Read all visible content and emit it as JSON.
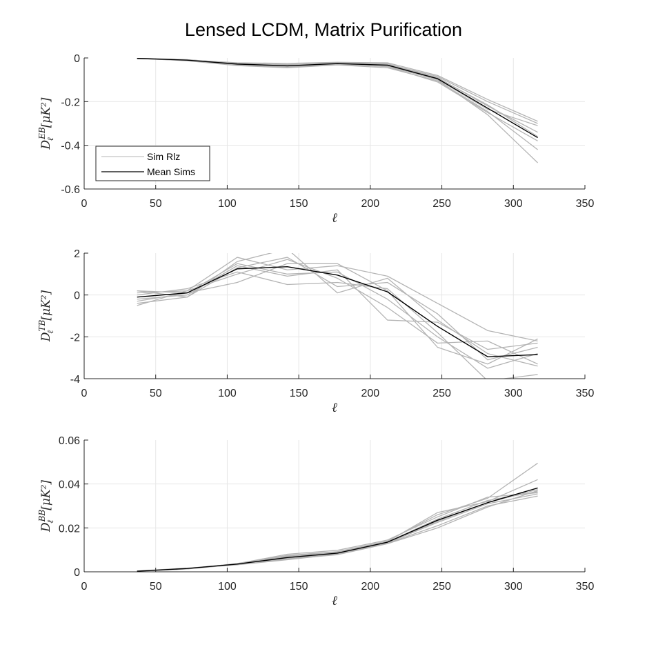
{
  "figure": {
    "title": "Lensed LCDM, Matrix Purification"
  },
  "colors": {
    "rlz": "#b4b4b4",
    "mean": "#000000",
    "grid": "#e6e6e6",
    "axis": "#262626"
  },
  "legend": {
    "entries": [
      "Sim Rlz",
      "Mean Sims"
    ],
    "placement": "inside-lower-left",
    "panel": 0
  },
  "chart_data": [
    {
      "type": "line",
      "title": "",
      "xlabel": "ℓ",
      "ylabel": {
        "base": "D",
        "sub": "ℓ",
        "sup": "EB",
        "unit": "[μK²]"
      },
      "xlim": [
        0,
        350
      ],
      "ylim": [
        -0.6,
        0
      ],
      "xticks": [
        0,
        50,
        100,
        150,
        200,
        250,
        300,
        350
      ],
      "yticks": [
        -0.6,
        -0.4,
        -0.2,
        0
      ],
      "ytick_labels": [
        "-0.6",
        "-0.4",
        "-0.2",
        "0"
      ],
      "grid": true,
      "x": [
        37,
        72,
        107,
        142,
        177,
        212,
        247,
        282,
        317
      ],
      "series": [
        {
          "name": "Mean Sims",
          "values": [
            -0.002,
            -0.01,
            -0.028,
            -0.036,
            -0.026,
            -0.033,
            -0.095,
            -0.23,
            -0.365
          ]
        }
      ],
      "realizations": [
        [
          -0.001,
          -0.008,
          -0.025,
          -0.03,
          -0.024,
          -0.028,
          -0.085,
          -0.2,
          -0.3
        ],
        [
          -0.002,
          -0.012,
          -0.032,
          -0.042,
          -0.03,
          -0.038,
          -0.1,
          -0.26,
          -0.48
        ],
        [
          -0.003,
          -0.009,
          -0.022,
          -0.025,
          -0.02,
          -0.022,
          -0.08,
          -0.19,
          -0.29
        ],
        [
          -0.002,
          -0.011,
          -0.03,
          -0.04,
          -0.028,
          -0.04,
          -0.11,
          -0.25,
          -0.38
        ],
        [
          -0.001,
          -0.01,
          -0.027,
          -0.034,
          -0.027,
          -0.03,
          -0.09,
          -0.22,
          -0.34
        ],
        [
          -0.002,
          -0.013,
          -0.035,
          -0.045,
          -0.032,
          -0.045,
          -0.105,
          -0.245,
          -0.42
        ],
        [
          -0.003,
          -0.008,
          -0.024,
          -0.032,
          -0.022,
          -0.026,
          -0.092,
          -0.215,
          -0.36
        ],
        [
          -0.002,
          -0.01,
          -0.029,
          -0.038,
          -0.025,
          -0.035,
          -0.098,
          -0.235,
          -0.31
        ]
      ]
    },
    {
      "type": "line",
      "title": "",
      "xlabel": "ℓ",
      "ylabel": {
        "base": "D",
        "sub": "ℓ",
        "sup": "TB",
        "unit": "[μK²]"
      },
      "xlim": [
        0,
        350
      ],
      "ylim": [
        -4,
        2
      ],
      "xticks": [
        0,
        50,
        100,
        150,
        200,
        250,
        300,
        350
      ],
      "yticks": [
        -4,
        -2,
        0,
        2
      ],
      "ytick_labels": [
        "-4",
        "-2",
        "0",
        "2"
      ],
      "grid": true,
      "x": [
        37,
        72,
        107,
        142,
        177,
        212,
        247,
        282,
        317
      ],
      "series": [
        {
          "name": "Mean Sims",
          "values": [
            -0.1,
            0.1,
            1.25,
            1.35,
            0.95,
            0.15,
            -1.5,
            -2.95,
            -2.85
          ]
        }
      ],
      "realizations": [
        [
          -0.5,
          0.2,
          1.8,
          1.2,
          1.4,
          0.9,
          -0.4,
          -1.7,
          -2.2
        ],
        [
          0.2,
          -0.1,
          1.6,
          2.2,
          0.1,
          0.8,
          -1.2,
          -2.8,
          -3.4
        ],
        [
          -0.3,
          0.1,
          0.6,
          1.5,
          1.5,
          0.2,
          -2.5,
          -3.3,
          -2.1
        ],
        [
          0.0,
          0.3,
          1.1,
          0.5,
          0.6,
          0.3,
          -1.8,
          -4.1,
          -3.8
        ],
        [
          -0.2,
          0.0,
          1.4,
          0.9,
          1.2,
          -1.2,
          -1.3,
          -2.6,
          -2.3
        ],
        [
          0.1,
          0.2,
          1.0,
          1.7,
          0.8,
          -0.6,
          -2.3,
          -2.2,
          -3.3
        ],
        [
          -0.4,
          -0.1,
          1.3,
          1.8,
          0.4,
          0.6,
          -0.9,
          -3.1,
          -2.5
        ],
        [
          0.2,
          0.1,
          1.5,
          1.0,
          1.1,
          -0.2,
          -2.0,
          -3.5,
          -2.8
        ]
      ]
    },
    {
      "type": "line",
      "title": "",
      "xlabel": "ℓ",
      "ylabel": {
        "base": "D",
        "sub": "ℓ",
        "sup": "BB",
        "unit": "[μK²]"
      },
      "xlim": [
        0,
        350
      ],
      "ylim": [
        0,
        0.06
      ],
      "xticks": [
        0,
        50,
        100,
        150,
        200,
        250,
        300,
        350
      ],
      "yticks": [
        0,
        0.02,
        0.04,
        0.06
      ],
      "ytick_labels": [
        "0",
        "0.02",
        "0.04",
        "0.06"
      ],
      "grid": true,
      "x": [
        37,
        72,
        107,
        142,
        177,
        212,
        247,
        282,
        317
      ],
      "series": [
        {
          "name": "Mean Sims",
          "values": [
            0.0003,
            0.0015,
            0.0035,
            0.0065,
            0.0085,
            0.0135,
            0.0235,
            0.0315,
            0.0382
          ]
        }
      ],
      "realizations": [
        [
          0.0002,
          0.0013,
          0.0038,
          0.0075,
          0.0092,
          0.014,
          0.026,
          0.0335,
          0.0495
        ],
        [
          0.0004,
          0.0017,
          0.0032,
          0.0055,
          0.008,
          0.013,
          0.021,
          0.03,
          0.0345
        ],
        [
          0.0003,
          0.0014,
          0.0036,
          0.0068,
          0.0088,
          0.0138,
          0.027,
          0.032,
          0.042
        ],
        [
          0.0003,
          0.0016,
          0.0034,
          0.006,
          0.0082,
          0.0132,
          0.0225,
          0.031,
          0.0355
        ],
        [
          0.0002,
          0.0015,
          0.0037,
          0.008,
          0.0098,
          0.0145,
          0.025,
          0.034,
          0.036
        ],
        [
          0.0004,
          0.0013,
          0.0033,
          0.0058,
          0.0078,
          0.0128,
          0.02,
          0.0295,
          0.037
        ],
        [
          0.0003,
          0.0016,
          0.0036,
          0.0072,
          0.009,
          0.0136,
          0.024,
          0.0325,
          0.0365
        ],
        [
          0.0002,
          0.0014,
          0.0035,
          0.0063,
          0.0086,
          0.0133,
          0.023,
          0.0315,
          0.0375
        ]
      ]
    }
  ]
}
